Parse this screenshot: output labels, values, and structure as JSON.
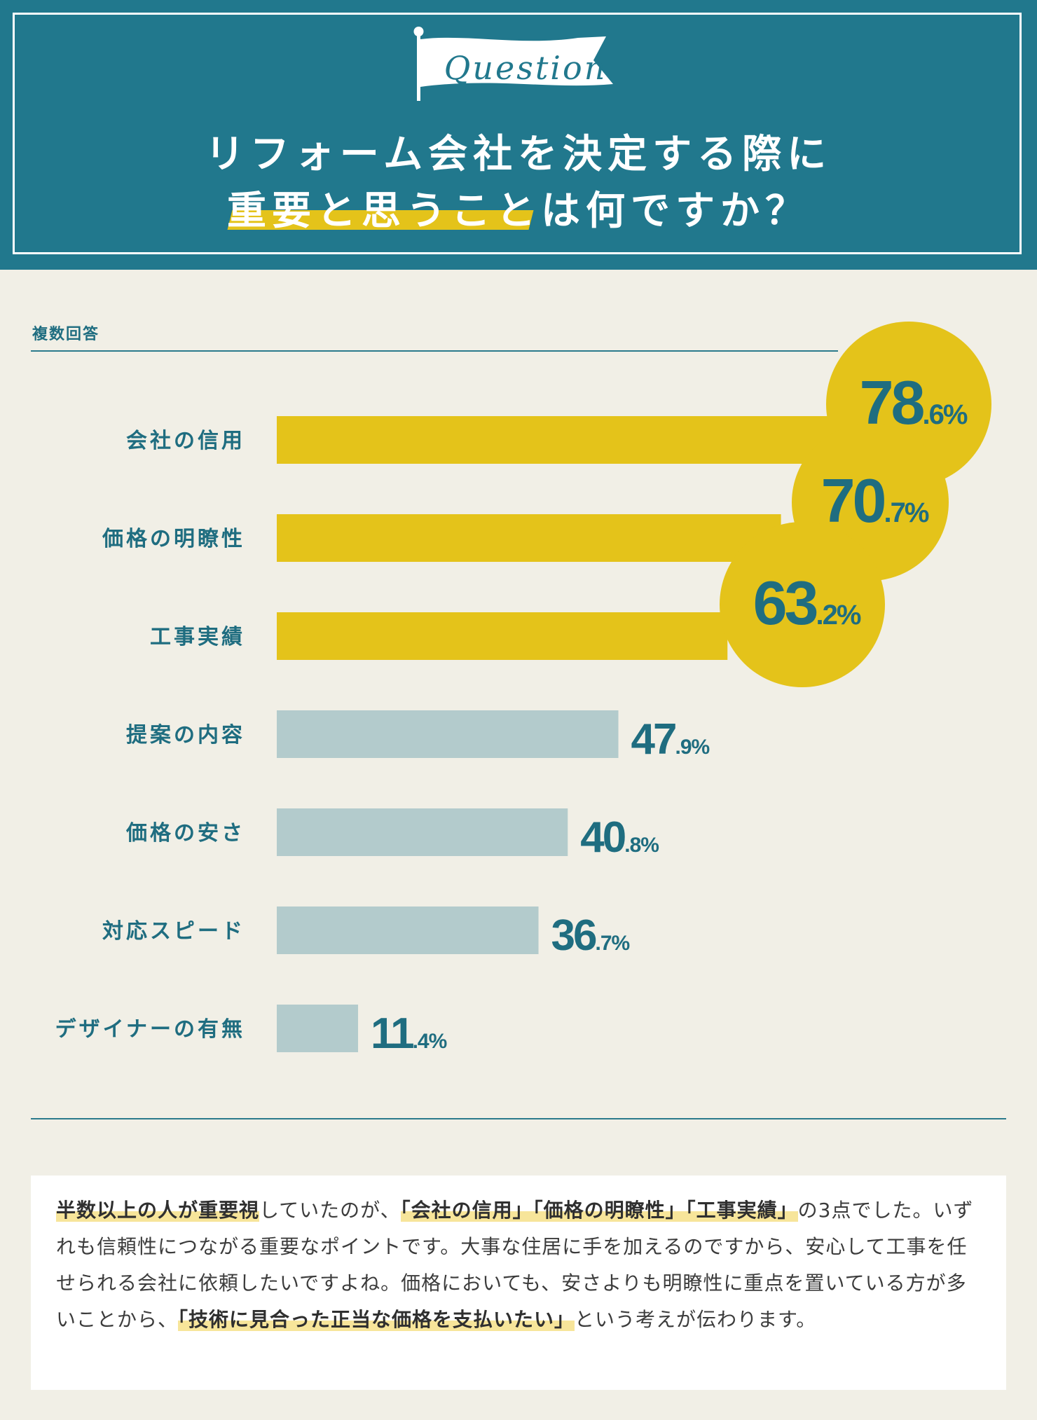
{
  "header": {
    "flag_word": "Question",
    "title_line1": "リフォーム会社を決定する際に",
    "title_line2": "重要と思うことは何ですか？"
  },
  "note": "複数回答",
  "chart_data": {
    "type": "bar",
    "orientation": "horizontal",
    "categories": [
      "会社の信用",
      "価格の明瞭性",
      "工事実績",
      "提案の内容",
      "価格の安さ",
      "対応スピード",
      "デザイナーの有無"
    ],
    "values": [
      78.6,
      70.7,
      63.2,
      47.9,
      40.8,
      36.7,
      11.4
    ],
    "value_labels": [
      {
        "int": "78",
        "dec": ".6%"
      },
      {
        "int": "70",
        "dec": ".7%"
      },
      {
        "int": "63",
        "dec": ".2%"
      },
      {
        "int": "47",
        "dec": ".9%"
      },
      {
        "int": "40",
        "dec": ".8%"
      },
      {
        "int": "36",
        "dec": ".7%"
      },
      {
        "int": "11",
        "dec": ".4%"
      }
    ],
    "highlighted_top": 3,
    "xlim": [
      0,
      78.6
    ],
    "colors": {
      "highlight": "#e4c31a",
      "normal": "#b3cbcc",
      "label": "#1f6d80"
    }
  },
  "summary": {
    "p1": "半数以上の人が重要視",
    "p2": "していたのが、",
    "p3": "「会社の信用」「価格の明瞭性」「工事実績」",
    "p4": "の3点でした。いずれも信頼性につながる重要なポイントです。大事な住居に手を加えるのですから、安心して工事を任せられる会社に依頼したいですよね。価格においても、安さよりも明瞭性に重点を置いている方が多いことから、",
    "p5": "「技術に見合った正当な価格を支払いたい」",
    "p6": "という考えが伝わります。"
  }
}
